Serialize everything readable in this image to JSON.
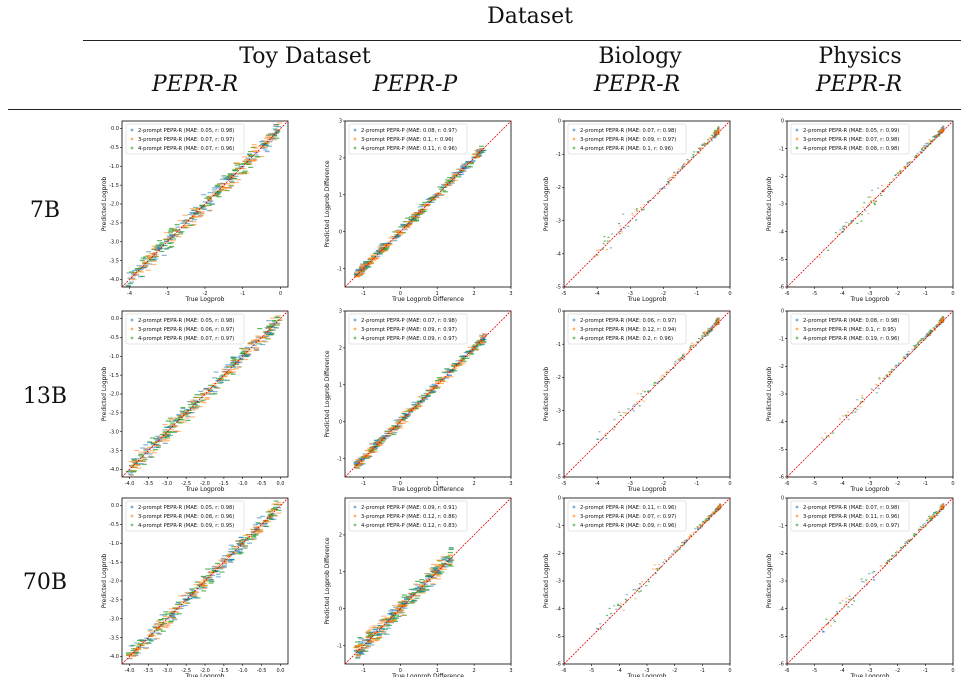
{
  "header": {
    "dataset_label": "Dataset",
    "groups": [
      {
        "name": "Toy Dataset",
        "subs": [
          "PEPR-R",
          "PEPR-P"
        ]
      },
      {
        "name": "Biology",
        "subs": [
          "PEPR-R"
        ]
      },
      {
        "name": "Physics",
        "subs": [
          "PEPR-R"
        ]
      }
    ]
  },
  "rows": [
    "7B",
    "13B",
    "70B"
  ],
  "colors": {
    "s2": "#1f77b4",
    "s3": "#ff7f0e",
    "s4": "#2ca02c",
    "diag": "#e00000"
  },
  "chart_data": [
    {
      "type": "scatter",
      "row": "7B",
      "col": "Toy PEPR-R",
      "xlabel": "True Logprob",
      "ylabel": "Predicted Logprob",
      "xlim": [
        -4.2,
        0.2
      ],
      "ylim": [
        -4.2,
        0.2
      ],
      "xticks": [
        "-4",
        "-3",
        "-2",
        "-1",
        "0"
      ],
      "yticks": [
        "-4.0",
        "-3.5",
        "-3.0",
        "-2.5",
        "-2.0",
        "-1.5",
        "-1.0",
        "-0.5",
        "0.0"
      ],
      "series": [
        {
          "name": "2-prompt PEPR-R (MAE: 0.05, r: 0.98)"
        },
        {
          "name": "3-prompt PEPR-R (MAE: 0.07, r: 0.97)"
        },
        {
          "name": "4-prompt PEPR-R (MAE: 0.07, r: 0.96)"
        }
      ]
    },
    {
      "type": "scatter",
      "row": "7B",
      "col": "Toy PEPR-P",
      "xlabel": "True Logprob Difference",
      "ylabel": "Predicted Logprob Difference",
      "xlim": [
        -1.5,
        3
      ],
      "ylim": [
        -1.5,
        3
      ],
      "xticks": [
        "-1",
        "0",
        "1",
        "2",
        "3"
      ],
      "yticks": [
        "-1",
        "0",
        "1",
        "2",
        "3"
      ],
      "series": [
        {
          "name": "2-prompt PEPR-P (MAE: 0.08, r: 0.97)"
        },
        {
          "name": "3-prompt PEPR-P (MAE: 0.1, r: 0.96)"
        },
        {
          "name": "4-prompt PEPR-P (MAE: 0.11, r: 0.96)"
        }
      ]
    },
    {
      "type": "scatter",
      "row": "7B",
      "col": "Biology PEPR-R",
      "xlabel": "True Logprob",
      "ylabel": "Predicted Logprob",
      "xlim": [
        -5,
        0
      ],
      "ylim": [
        -5,
        0
      ],
      "xticks": [
        "-5",
        "-4",
        "-3",
        "-2",
        "-1",
        "0"
      ],
      "yticks": [
        "-5",
        "-4",
        "-3",
        "-2",
        "-1",
        "0"
      ],
      "series": [
        {
          "name": "2-prompt PEPR-R (MAE: 0.07, r: 0.98)"
        },
        {
          "name": "3-prompt PEPR-R (MAE: 0.09, r: 0.97)"
        },
        {
          "name": "4-prompt PEPR-R (MAE: 0.1, r: 0.96)"
        }
      ]
    },
    {
      "type": "scatter",
      "row": "7B",
      "col": "Physics PEPR-R",
      "xlabel": "True Logprob",
      "ylabel": "Predicted Logprob",
      "xlim": [
        -6,
        0
      ],
      "ylim": [
        -6,
        0
      ],
      "xticks": [
        "-6",
        "-5",
        "-4",
        "-3",
        "-2",
        "-1",
        "0"
      ],
      "yticks": [
        "-6",
        "-5",
        "-4",
        "-3",
        "-2",
        "-1",
        "0"
      ],
      "series": [
        {
          "name": "2-prompt PEPR-R (MAE: 0.05, r: 0.99)"
        },
        {
          "name": "3-prompt PEPR-R (MAE: 0.07, r: 0.98)"
        },
        {
          "name": "4-prompt PEPR-R (MAE: 0.08, r: 0.98)"
        }
      ]
    },
    {
      "type": "scatter",
      "row": "13B",
      "col": "Toy PEPR-R",
      "xlabel": "True Logprob",
      "ylabel": "Predicted Logprob",
      "xlim": [
        -4.2,
        0.2
      ],
      "ylim": [
        -4.2,
        0.2
      ],
      "xticks": [
        "-4.0",
        "-3.5",
        "-3.0",
        "-2.5",
        "-2.0",
        "-1.5",
        "-1.0",
        "-0.5",
        "0.0"
      ],
      "yticks": [
        "-4.0",
        "-3.5",
        "-3.0",
        "-2.5",
        "-2.0",
        "-1.5",
        "-1.0",
        "-0.5",
        "0.0"
      ],
      "series": [
        {
          "name": "2-prompt PEPR-R (MAE: 0.05, r: 0.98)"
        },
        {
          "name": "3-prompt PEPR-R (MAE: 0.06, r: 0.97)"
        },
        {
          "name": "4-prompt PEPR-R (MAE: 0.07, r: 0.97)"
        }
      ]
    },
    {
      "type": "scatter",
      "row": "13B",
      "col": "Toy PEPR-P",
      "xlabel": "True Logprob Difference",
      "ylabel": "Predicted Logprob Difference",
      "xlim": [
        -1.5,
        3
      ],
      "ylim": [
        -1.5,
        3
      ],
      "xticks": [
        "-1",
        "0",
        "1",
        "2",
        "3"
      ],
      "yticks": [
        "-1",
        "0",
        "1",
        "2",
        "3"
      ],
      "series": [
        {
          "name": "2-prompt PEPR-P (MAE: 0.07, r: 0.98)"
        },
        {
          "name": "3-prompt PEPR-P (MAE: 0.09, r: 0.97)"
        },
        {
          "name": "4-prompt PEPR-P (MAE: 0.09, r: 0.97)"
        }
      ]
    },
    {
      "type": "scatter",
      "row": "13B",
      "col": "Biology PEPR-R",
      "xlabel": "True Logprob",
      "ylabel": "Predicted Logprob",
      "xlim": [
        -5,
        0
      ],
      "ylim": [
        -5,
        0
      ],
      "xticks": [
        "-5",
        "-4",
        "-3",
        "-2",
        "-1",
        "0"
      ],
      "yticks": [
        "-5",
        "-4",
        "-3",
        "-2",
        "-1",
        "0"
      ],
      "series": [
        {
          "name": "2-prompt PEPR-R (MAE: 0.06, r: 0.97)"
        },
        {
          "name": "3-prompt PEPR-R (MAE: 0.12, r: 0.94)"
        },
        {
          "name": "4-prompt PEPR-R (MAE: 0.2, r: 0.96)"
        }
      ]
    },
    {
      "type": "scatter",
      "row": "13B",
      "col": "Physics PEPR-R",
      "xlabel": "True Logprob",
      "ylabel": "Predicted Logprob",
      "xlim": [
        -6,
        0
      ],
      "ylim": [
        -6,
        0
      ],
      "xticks": [
        "-6",
        "-5",
        "-4",
        "-3",
        "-2",
        "-1",
        "0"
      ],
      "yticks": [
        "-6",
        "-5",
        "-4",
        "-3",
        "-2",
        "-1",
        "0"
      ],
      "series": [
        {
          "name": "2-prompt PEPR-R (MAE: 0.08, r: 0.98)"
        },
        {
          "name": "3-prompt PEPR-R (MAE: 0.1, r: 0.95)"
        },
        {
          "name": "4-prompt PEPR-R (MAE: 0.19, r: 0.96)"
        }
      ]
    },
    {
      "type": "scatter",
      "row": "70B",
      "col": "Toy PEPR-R",
      "xlabel": "True Logprob",
      "ylabel": "Predicted Logprob",
      "xlim": [
        -4.2,
        0.2
      ],
      "ylim": [
        -4.2,
        0.2
      ],
      "xticks": [
        "-4.0",
        "-3.5",
        "-3.0",
        "-2.5",
        "-2.0",
        "-1.5",
        "-1.0",
        "-0.5",
        "0.0"
      ],
      "yticks": [
        "-4.0",
        "-3.5",
        "-3.0",
        "-2.5",
        "-2.0",
        "-1.5",
        "-1.0",
        "-0.5",
        "0.0"
      ],
      "series": [
        {
          "name": "2-prompt PEPR-R (MAE: 0.05, r: 0.98)"
        },
        {
          "name": "3-prompt PEPR-R (MAE: 0.08, r: 0.96)"
        },
        {
          "name": "4-prompt PEPR-R (MAE: 0.09, r: 0.95)"
        }
      ]
    },
    {
      "type": "scatter",
      "row": "70B",
      "col": "Toy PEPR-P",
      "xlabel": "True Logprob Difference",
      "ylabel": "Predicted Logprob Difference",
      "xlim": [
        -1.5,
        3
      ],
      "ylim": [
        -1.5,
        3
      ],
      "xticks": [
        "-1",
        "0",
        "1",
        "2",
        "3"
      ],
      "yticks": [
        "-1",
        "0",
        "1",
        "2"
      ],
      "series": [
        {
          "name": "2-prompt PEPR-P (MAE: 0.09, r: 0.91)"
        },
        {
          "name": "3-prompt PEPR-P (MAE: 0.12, r: 0.86)"
        },
        {
          "name": "4-prompt PEPR-P (MAE: 0.12, r: 0.83)"
        }
      ]
    },
    {
      "type": "scatter",
      "row": "70B",
      "col": "Biology PEPR-R",
      "xlabel": "True Logprob",
      "ylabel": "Predicted Logprob",
      "xlim": [
        -6,
        0
      ],
      "ylim": [
        -6,
        0
      ],
      "xticks": [
        "-6",
        "-5",
        "-4",
        "-3",
        "-2",
        "-1",
        "0"
      ],
      "yticks": [
        "-6",
        "-5",
        "-4",
        "-3",
        "-2",
        "-1",
        "0"
      ],
      "series": [
        {
          "name": "2-prompt PEPR-R (MAE: 0.11, r: 0.96)"
        },
        {
          "name": "3-prompt PEPR-R (MAE: 0.07, r: 0.97)"
        },
        {
          "name": "4-prompt PEPR-R (MAE: 0.09, r: 0.96)"
        }
      ]
    },
    {
      "type": "scatter",
      "row": "70B",
      "col": "Physics PEPR-R",
      "xlabel": "True Logprob",
      "ylabel": "Predicted Logprob",
      "xlim": [
        -6,
        0
      ],
      "ylim": [
        -6,
        0
      ],
      "xticks": [
        "-6",
        "-5",
        "-4",
        "-3",
        "-2",
        "-1",
        "0"
      ],
      "yticks": [
        "-6",
        "-5",
        "-4",
        "-3",
        "-2",
        "-1",
        "0"
      ],
      "series": [
        {
          "name": "2-prompt PEPR-R (MAE: 0.07, r: 0.98)"
        },
        {
          "name": "3-prompt PEPR-R (MAE: 0.11, r: 0.96)"
        },
        {
          "name": "4-prompt PEPR-R (MAE: 0.09, r: 0.97)"
        }
      ]
    }
  ]
}
